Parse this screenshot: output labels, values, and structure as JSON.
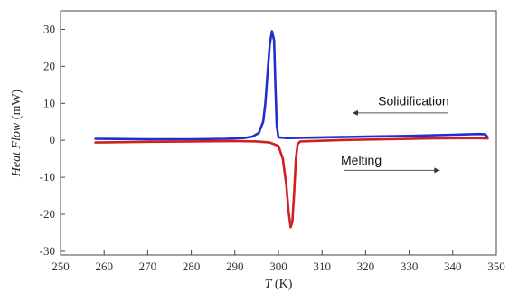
{
  "chart_data": {
    "type": "line",
    "xlabel": {
      "symbol": "T",
      "unit": " (K)"
    },
    "ylabel": {
      "symbol": "Heat Flow",
      "unit": " (mW)"
    },
    "xlim": [
      250,
      350
    ],
    "ylim": [
      -31,
      35
    ],
    "xticks": [
      250,
      260,
      270,
      280,
      290,
      300,
      310,
      320,
      330,
      340,
      350
    ],
    "yticks": [
      -30,
      -20,
      -10,
      0,
      10,
      20,
      30
    ],
    "grid": false,
    "legend": "none",
    "series": [
      {
        "color": "#1f2fcf",
        "points": [
          [
            258,
            0.4
          ],
          [
            270,
            0.3
          ],
          [
            280,
            0.3
          ],
          [
            288,
            0.4
          ],
          [
            292,
            0.6
          ],
          [
            294,
            1.0
          ],
          [
            295.5,
            2.0
          ],
          [
            296.5,
            5.0
          ],
          [
            297,
            10.0
          ],
          [
            297.5,
            18.0
          ],
          [
            298,
            26.0
          ],
          [
            298.5,
            29.5
          ],
          [
            299,
            27.0
          ],
          [
            299.3,
            15.0
          ],
          [
            299.6,
            4.0
          ],
          [
            300,
            0.8
          ],
          [
            302,
            0.6
          ],
          [
            310,
            0.8
          ],
          [
            320,
            1.0
          ],
          [
            330,
            1.2
          ],
          [
            340,
            1.5
          ],
          [
            346,
            1.7
          ],
          [
            347.5,
            1.6
          ],
          [
            348,
            0.8
          ]
        ]
      },
      {
        "color": "#d02020",
        "points": [
          [
            258,
            -0.6
          ],
          [
            270,
            -0.4
          ],
          [
            280,
            -0.3
          ],
          [
            290,
            -0.2
          ],
          [
            295,
            -0.3
          ],
          [
            298,
            -0.6
          ],
          [
            300,
            -1.5
          ],
          [
            301,
            -5.0
          ],
          [
            301.8,
            -12.0
          ],
          [
            302.3,
            -19.0
          ],
          [
            302.8,
            -23.5
          ],
          [
            303.2,
            -22.0
          ],
          [
            303.6,
            -14.0
          ],
          [
            304,
            -5.0
          ],
          [
            304.4,
            -1.0
          ],
          [
            305,
            -0.3
          ],
          [
            315,
            0.1
          ],
          [
            325,
            0.3
          ],
          [
            335,
            0.5
          ],
          [
            345,
            0.6
          ],
          [
            348,
            0.5
          ]
        ]
      }
    ],
    "annotations": [
      {
        "text": "Solidification",
        "x": 331,
        "y": 9.5,
        "arrow_from": [
          339,
          7.4
        ],
        "arrow_to": [
          317,
          7.4
        ]
      },
      {
        "text": "Melting",
        "x": 319,
        "y": -6.5,
        "arrow_from": [
          315,
          -8.1
        ],
        "arrow_to": [
          337,
          -8.1
        ]
      }
    ]
  }
}
